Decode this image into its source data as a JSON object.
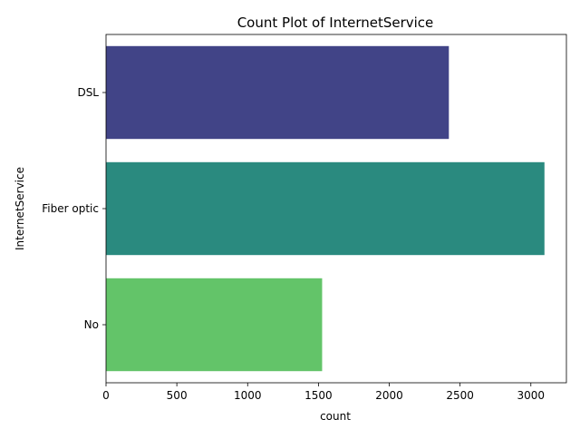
{
  "chart_data": {
    "type": "bar",
    "orientation": "horizontal",
    "title": "Count Plot of InternetService",
    "xlabel": "count",
    "ylabel": "InternetService",
    "categories": [
      "DSL",
      "Fiber optic",
      "No"
    ],
    "values": [
      2421,
      3096,
      1526
    ],
    "colors": [
      "#414487",
      "#2a8a7f",
      "#63c469"
    ],
    "xlim": [
      0,
      3251
    ],
    "xticks": [
      0,
      500,
      1000,
      1500,
      2000,
      2500,
      3000
    ],
    "xtick_labels": [
      "0",
      "500",
      "1000",
      "1500",
      "2000",
      "2500",
      "3000"
    ],
    "grid": false,
    "legend": "none"
  }
}
